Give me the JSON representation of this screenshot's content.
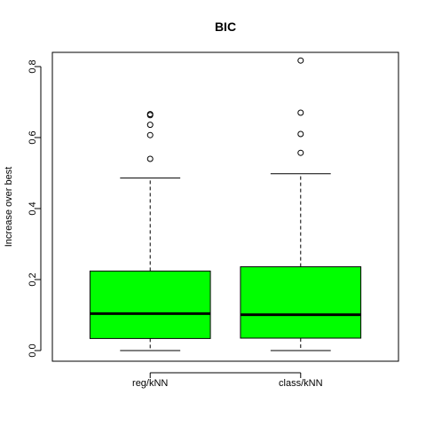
{
  "chart_data": {
    "type": "box",
    "title": "BIC",
    "xlabel": "",
    "ylabel": "Increase over best",
    "ylim": [
      -0.03,
      0.84
    ],
    "yticks": [
      0.0,
      0.2,
      0.4,
      0.6,
      0.8
    ],
    "ytick_labels": [
      "0.0",
      "0.2",
      "0.4",
      "0.6",
      "0.8"
    ],
    "grid": false,
    "box_color": "#00ff00",
    "categories": [
      "reg/kNN",
      "class/kNN"
    ],
    "boxes": [
      {
        "label": "reg/kNN",
        "whisker_low": 0.0,
        "q1": 0.034,
        "median": 0.104,
        "q3": 0.224,
        "whisker_high": 0.486,
        "outliers": [
          0.54,
          0.607,
          0.636,
          0.663,
          0.666
        ]
      },
      {
        "label": "class/kNN",
        "whisker_low": 0.0,
        "q1": 0.035,
        "median": 0.101,
        "q3": 0.236,
        "whisker_high": 0.498,
        "outliers": [
          0.557,
          0.61,
          0.67,
          0.817
        ]
      }
    ]
  }
}
